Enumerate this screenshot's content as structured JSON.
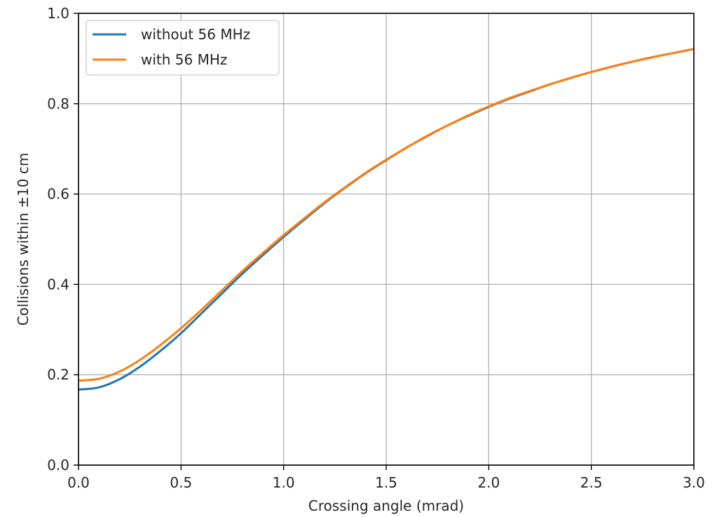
{
  "chart_data": {
    "type": "line",
    "title": "",
    "xlabel": "Crossing angle (mrad)",
    "ylabel": "Collisions within ±10 cm",
    "xlim": [
      0.0,
      3.0
    ],
    "ylim": [
      0.0,
      1.0
    ],
    "xticks": [
      "0.0",
      "0.5",
      "1.0",
      "1.5",
      "2.0",
      "2.5",
      "3.0"
    ],
    "yticks": [
      "0.0",
      "0.2",
      "0.4",
      "0.6",
      "0.8",
      "1.0"
    ],
    "grid": true,
    "legend_position": "top-left",
    "x": [
      0.0,
      0.1,
      0.2,
      0.3,
      0.4,
      0.5,
      0.6,
      0.7,
      0.8,
      0.9,
      1.0,
      1.1,
      1.2,
      1.3,
      1.4,
      1.5,
      1.6,
      1.7,
      1.8,
      1.9,
      2.0,
      2.1,
      2.2,
      2.3,
      2.4,
      2.5,
      2.6,
      2.7,
      2.8,
      2.9,
      3.0
    ],
    "series": [
      {
        "name": "without 56 MHz",
        "color": "#1f77b4",
        "values": [
          0.167,
          0.172,
          0.19,
          0.218,
          0.253,
          0.292,
          0.336,
          0.38,
          0.424,
          0.465,
          0.505,
          0.543,
          0.58,
          0.614,
          0.646,
          0.675,
          0.703,
          0.728,
          0.752,
          0.773,
          0.793,
          0.811,
          0.827,
          0.843,
          0.857,
          0.87,
          0.882,
          0.893,
          0.903,
          0.912,
          0.921
        ]
      },
      {
        "name": "with 56 MHz",
        "color": "#ff7f0e",
        "values": [
          0.187,
          0.191,
          0.207,
          0.233,
          0.266,
          0.303,
          0.344,
          0.387,
          0.43,
          0.47,
          0.509,
          0.546,
          0.582,
          0.615,
          0.647,
          0.676,
          0.703,
          0.729,
          0.752,
          0.774,
          0.794,
          0.812,
          0.828,
          0.843,
          0.857,
          0.87,
          0.882,
          0.893,
          0.903,
          0.912,
          0.921
        ]
      }
    ]
  }
}
